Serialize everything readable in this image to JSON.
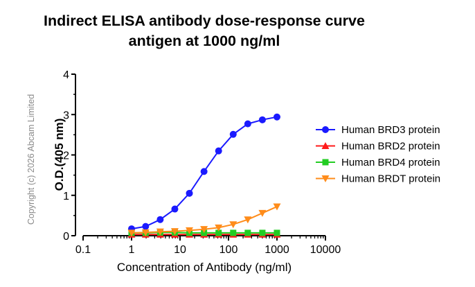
{
  "chart_data": {
    "type": "line",
    "title": "Indirect ELISA antibody dose-response curve",
    "subtitle": "antigen at 1000 ng/ml",
    "xlabel": "Concentration of Antibody (ng/ml)",
    "ylabel": "O.D.(405 nm)",
    "x_scale": "log",
    "xlim": [
      0.1,
      10000
    ],
    "ylim": [
      0,
      4
    ],
    "x_ticks": [
      "0.1",
      "1",
      "10",
      "100",
      "1000",
      "10000"
    ],
    "y_ticks": [
      "0",
      "1",
      "2",
      "3",
      "4"
    ],
    "legend_position": "right",
    "x": [
      1,
      1.95,
      3.9,
      7.8,
      15.6,
      31.25,
      62.5,
      125,
      250,
      500,
      1000
    ],
    "series": [
      {
        "name": "Human BRD3 protein",
        "color": "#1a1aff",
        "marker": "circle",
        "values": [
          0.17,
          0.23,
          0.4,
          0.66,
          1.05,
          1.59,
          2.1,
          2.51,
          2.77,
          2.87,
          2.94
        ]
      },
      {
        "name": "Human BRD2 protein",
        "color": "#ff1a1a",
        "marker": "triangle-up",
        "values": [
          0.03,
          0.03,
          0.03,
          0.03,
          0.03,
          0.03,
          0.03,
          0.03,
          0.03,
          0.03,
          0.03
        ]
      },
      {
        "name": "Human BRD4 protein",
        "color": "#22cc22",
        "marker": "square",
        "values": [
          0.07,
          0.07,
          0.08,
          0.08,
          0.07,
          0.07,
          0.07,
          0.07,
          0.07,
          0.07,
          0.07
        ]
      },
      {
        "name": "Human BRDT protein",
        "color": "#ff8c1a",
        "marker": "triangle-down",
        "values": [
          0.07,
          0.08,
          0.1,
          0.11,
          0.13,
          0.16,
          0.2,
          0.28,
          0.4,
          0.56,
          0.72
        ]
      }
    ]
  },
  "copyright": "Copyright (c) 2026 Abcam Limited"
}
